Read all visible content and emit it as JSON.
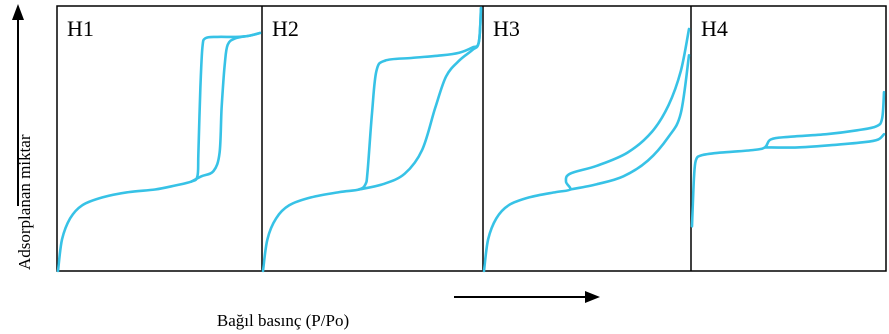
{
  "chart_data": {
    "type": "line",
    "title": "",
    "xlabel": "Bağıl basınç (P/Po)",
    "ylabel": "Adsorplanan miktar",
    "panels": [
      {
        "label": "H1",
        "series": [
          {
            "points": [
              [
                0.0,
                0.0
              ],
              [
                0.02,
                0.12
              ],
              [
                0.06,
                0.2
              ],
              [
                0.12,
                0.25
              ],
              [
                0.22,
                0.28
              ],
              [
                0.35,
                0.3
              ],
              [
                0.48,
                0.31
              ],
              [
                0.58,
                0.325
              ],
              [
                0.66,
                0.34
              ],
              [
                0.69,
                0.36
              ],
              [
                0.695,
                0.45
              ],
              [
                0.705,
                0.7
              ],
              [
                0.715,
                0.85
              ],
              [
                0.73,
                0.885
              ],
              [
                0.79,
                0.89
              ],
              [
                0.88,
                0.89
              ],
              [
                0.95,
                0.895
              ],
              [
                1.0,
                0.905
              ]
            ]
          },
          {
            "points": [
              [
                0.66,
                0.34
              ],
              [
                0.71,
                0.36
              ],
              [
                0.77,
                0.38
              ],
              [
                0.8,
                0.45
              ],
              [
                0.81,
                0.62
              ],
              [
                0.825,
                0.78
              ],
              [
                0.84,
                0.86
              ],
              [
                0.88,
                0.885
              ],
              [
                0.95,
                0.895
              ],
              [
                1.0,
                0.905
              ]
            ]
          }
        ]
      },
      {
        "label": "H2",
        "series": [
          {
            "points": [
              [
                0.0,
                0.0
              ],
              [
                0.02,
                0.12
              ],
              [
                0.06,
                0.2
              ],
              [
                0.12,
                0.25
              ],
              [
                0.22,
                0.28
              ],
              [
                0.35,
                0.3
              ],
              [
                0.44,
                0.31
              ],
              [
                0.47,
                0.33
              ],
              [
                0.48,
                0.38
              ],
              [
                0.5,
                0.6
              ],
              [
                0.52,
                0.76
              ],
              [
                0.56,
                0.8
              ],
              [
                0.68,
                0.81
              ],
              [
                0.82,
                0.82
              ],
              [
                0.9,
                0.83
              ],
              [
                0.96,
                0.85
              ],
              [
                0.99,
                0.87
              ],
              [
                1.0,
                1.0
              ]
            ]
          },
          {
            "points": [
              [
                0.44,
                0.31
              ],
              [
                0.55,
                0.33
              ],
              [
                0.65,
                0.37
              ],
              [
                0.73,
                0.46
              ],
              [
                0.79,
                0.62
              ],
              [
                0.84,
                0.74
              ],
              [
                0.9,
                0.8
              ],
              [
                0.96,
                0.84
              ],
              [
                0.99,
                0.87
              ],
              [
                1.0,
                1.0
              ]
            ]
          }
        ]
      },
      {
        "label": "H3",
        "series": [
          {
            "points": [
              [
                0.0,
                0.0
              ],
              [
                0.02,
                0.12
              ],
              [
                0.06,
                0.2
              ],
              [
                0.12,
                0.25
              ],
              [
                0.22,
                0.28
              ],
              [
                0.35,
                0.3
              ],
              [
                0.42,
                0.31
              ],
              [
                0.4,
                0.34
              ],
              [
                0.42,
                0.37
              ],
              [
                0.55,
                0.4
              ],
              [
                0.7,
                0.45
              ],
              [
                0.82,
                0.53
              ],
              [
                0.9,
                0.63
              ],
              [
                0.96,
                0.76
              ],
              [
                1.0,
                0.92
              ]
            ]
          },
          {
            "points": [
              [
                0.42,
                0.31
              ],
              [
                0.55,
                0.33
              ],
              [
                0.68,
                0.36
              ],
              [
                0.8,
                0.42
              ],
              [
                0.9,
                0.51
              ],
              [
                0.96,
                0.6
              ],
              [
                1.0,
                0.82
              ]
            ]
          }
        ]
      },
      {
        "label": "H4",
        "series": [
          {
            "points": [
              [
                0.0,
                0.17
              ],
              [
                0.01,
                0.35
              ],
              [
                0.02,
                0.42
              ],
              [
                0.05,
                0.44
              ],
              [
                0.15,
                0.45
              ],
              [
                0.32,
                0.46
              ],
              [
                0.38,
                0.47
              ],
              [
                0.41,
                0.5
              ],
              [
                0.5,
                0.51
              ],
              [
                0.7,
                0.52
              ],
              [
                0.86,
                0.535
              ],
              [
                0.96,
                0.55
              ],
              [
                0.99,
                0.58
              ],
              [
                1.0,
                0.68
              ]
            ]
          },
          {
            "points": [
              [
                0.38,
                0.47
              ],
              [
                0.55,
                0.47
              ],
              [
                0.75,
                0.48
              ],
              [
                0.9,
                0.49
              ],
              [
                0.97,
                0.5
              ],
              [
                1.0,
                0.52
              ]
            ]
          }
        ]
      }
    ],
    "grid": false,
    "legend": "none",
    "color": "#37c2e6"
  }
}
